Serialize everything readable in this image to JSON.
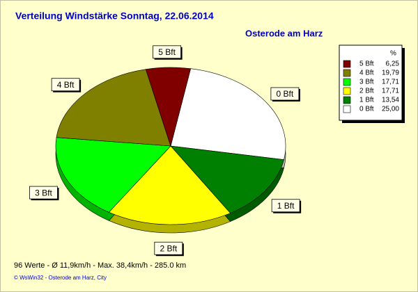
{
  "chart_data": {
    "type": "pie",
    "title": "Verteilung Windstärke  Sonntag, 22.06.2014",
    "subtitle": "Osterode am Harz",
    "legend_header": "%",
    "categories": [
      "5 Bft",
      "4 Bft",
      "3 Bft",
      "2 Bft",
      "1 Bft",
      "0 Bft"
    ],
    "values": [
      6.25,
      19.79,
      17.71,
      17.71,
      13.54,
      25.0
    ],
    "value_labels": [
      "6,25",
      "19,79",
      "17,71",
      "17,71",
      "13,54",
      "25,00"
    ],
    "colors": [
      "#800000",
      "#808000",
      "#00ff00",
      "#ffff00",
      "#008000",
      "#ffffff"
    ],
    "legend": "right",
    "footer": "96 Werte   -   Ø 11,9km/h  -  Max. 38,4km/h   -   285.0 km",
    "credit": "© WsWin32  -  Osterode am Harz, City"
  }
}
